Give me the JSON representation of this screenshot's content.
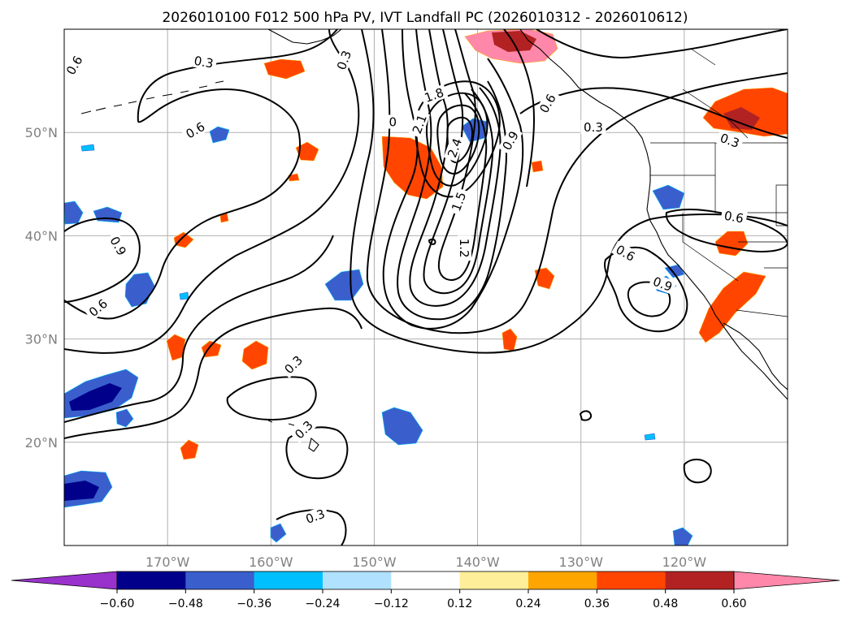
{
  "title": "2026010100 F012 500 hPa PV, IVT Landfall PC (2026010312 - 2026010612)",
  "map": {
    "region": "North Pacific / western North America",
    "lon_range": [
      -180,
      -110
    ],
    "lat_range": [
      10,
      60
    ],
    "lat_ticks": [
      {
        "value": 20,
        "label": "20°N"
      },
      {
        "value": 30,
        "label": "30°N"
      },
      {
        "value": 40,
        "label": "40°N"
      },
      {
        "value": 50,
        "label": "50°N"
      }
    ],
    "lon_ticks": [
      {
        "value": -170,
        "label": "170°W"
      },
      {
        "value": -160,
        "label": "160°W"
      },
      {
        "value": -150,
        "label": "150°W"
      },
      {
        "value": -140,
        "label": "140°W"
      },
      {
        "value": -130,
        "label": "130°W"
      },
      {
        "value": -120,
        "label": "120°W"
      }
    ],
    "gridlines": true
  },
  "contour_labels": [
    {
      "text": "0.6",
      "lon": -179,
      "lat": 56.5,
      "rot": -60
    },
    {
      "text": "0.3",
      "lon": -166.5,
      "lat": 56.8,
      "rot": 10
    },
    {
      "text": "0.6",
      "lon": -167.3,
      "lat": 50.2,
      "rot": -30
    },
    {
      "text": "0.9",
      "lon": -174.8,
      "lat": 39,
      "rot": 60
    },
    {
      "text": "0.6",
      "lon": -176.7,
      "lat": 33,
      "rot": -40
    },
    {
      "text": "0.3",
      "lon": -157.8,
      "lat": 27.5,
      "rot": -45
    },
    {
      "text": "0.3",
      "lon": -156.8,
      "lat": 21.2,
      "rot": -45
    },
    {
      "text": "0.3",
      "lon": -155.7,
      "lat": 12.8,
      "rot": -20
    },
    {
      "text": "0.3",
      "lon": -152.9,
      "lat": 57,
      "rot": -70
    },
    {
      "text": "0",
      "lon": -148.2,
      "lat": 51,
      "rot": 0
    },
    {
      "text": "1.8",
      "lon": -144.2,
      "lat": 53.6,
      "rot": -20
    },
    {
      "text": "2.1",
      "lon": -145.6,
      "lat": 50.8,
      "rot": -70
    },
    {
      "text": "2.4",
      "lon": -142.2,
      "lat": 48.5,
      "rot": -70
    },
    {
      "text": "1.5",
      "lon": -141.8,
      "lat": 43.3,
      "rot": -70
    },
    {
      "text": "1.2",
      "lon": -141.3,
      "lat": 38.8,
      "rot": 90
    },
    {
      "text": "0.9",
      "lon": -136.8,
      "lat": 49.2,
      "rot": -60
    },
    {
      "text": "0.6",
      "lon": -133.2,
      "lat": 52.8,
      "rot": -60
    },
    {
      "text": "0.3",
      "lon": -128.8,
      "lat": 50.5,
      "rot": 0
    },
    {
      "text": "0.3",
      "lon": -115.6,
      "lat": 49.2,
      "rot": 20
    },
    {
      "text": "0.6",
      "lon": -125.7,
      "lat": 38.3,
      "rot": 30
    },
    {
      "text": "0.9",
      "lon": -122.1,
      "lat": 35.3,
      "rot": 20
    },
    {
      "text": "0.6",
      "lon": -115.2,
      "lat": 41.8,
      "rot": 10
    }
  ],
  "colorbar": {
    "ticks": [
      "−0.60",
      "−0.48",
      "−0.36",
      "−0.24",
      "−0.12",
      "0.12",
      "0.24",
      "0.36",
      "0.48",
      "0.60"
    ],
    "under_color": "#9932cc",
    "over_color": "#ff88aa",
    "colors": [
      "#00008b",
      "#3a5fcd",
      "#00bfff",
      "#b0e2ff",
      "#ffffff",
      "#ffee99",
      "#ffa500",
      "#ff4500",
      "#b22222"
    ]
  }
}
